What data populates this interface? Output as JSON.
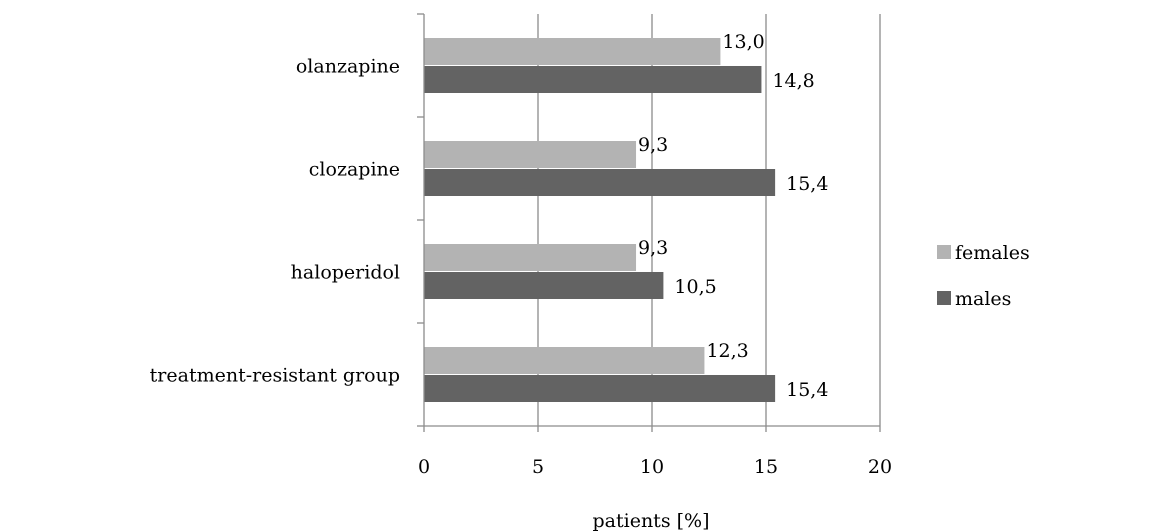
{
  "chart_data": {
    "type": "bar",
    "orientation": "horizontal",
    "categories": [
      "olanzapine",
      "clozapine",
      "haloperidol",
      "treatment-resistant group"
    ],
    "series": [
      {
        "name": "females",
        "values": [
          13.0,
          9.3,
          9.3,
          12.3
        ],
        "labels": [
          "13,0",
          "9,3",
          "9,3",
          "12,3"
        ],
        "color": "#b3b3b3"
      },
      {
        "name": "males",
        "values": [
          14.8,
          15.4,
          10.5,
          15.4
        ],
        "labels": [
          "14,8",
          "15,4",
          "10,5",
          "15,4"
        ],
        "color": "#636363"
      }
    ],
    "xlabel": "patients [%]",
    "ylabel": "",
    "xlim": [
      0,
      20
    ],
    "x_ticks": [
      0,
      5,
      10,
      15,
      20
    ],
    "x_tick_labels": [
      "0",
      "5",
      "10",
      "15",
      "20"
    ],
    "grid": "vertical",
    "legend_position": "right"
  }
}
